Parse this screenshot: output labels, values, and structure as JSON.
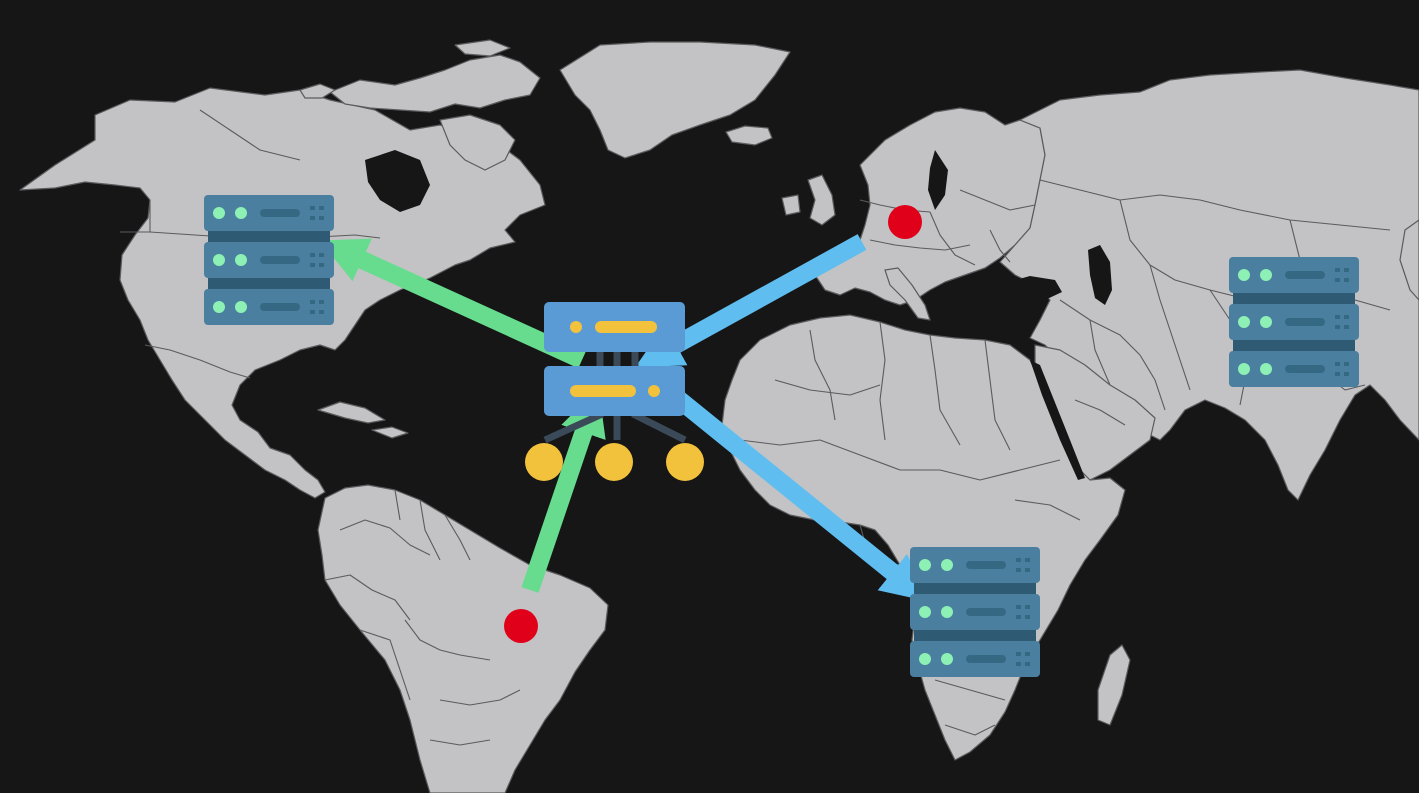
{
  "scene": {
    "background": "#161616",
    "land_color": "#c3c3c5",
    "border_color": "#5b5b5e"
  },
  "colors": {
    "server_body": "#4a7fa0",
    "server_led": "#8df0b4",
    "hub_body": "#5b9bd5",
    "hub_bar": "#f2c23c",
    "node_color": "#f2c23c",
    "user_marker": "#e0001a",
    "arrow_green": "#67dc8e",
    "arrow_blue": "#5fbdf0"
  },
  "servers": [
    {
      "id": "north-america",
      "icon": "server-rack-icon"
    },
    {
      "id": "asia",
      "icon": "server-rack-icon"
    },
    {
      "id": "africa",
      "icon": "server-rack-icon"
    }
  ],
  "hub": {
    "id": "load-balancer",
    "icon": "load-balancer-icon"
  },
  "users": [
    {
      "id": "europe",
      "icon": "location-dot-icon"
    },
    {
      "id": "south-america",
      "icon": "location-dot-icon"
    }
  ],
  "flows": [
    {
      "from": "south-america-user",
      "to": "load-balancer",
      "color": "green"
    },
    {
      "from": "load-balancer",
      "to": "north-america-server",
      "color": "green"
    },
    {
      "from": "europe-user",
      "to": "load-balancer",
      "color": "blue"
    },
    {
      "from": "load-balancer",
      "to": "africa-server",
      "color": "blue"
    }
  ]
}
